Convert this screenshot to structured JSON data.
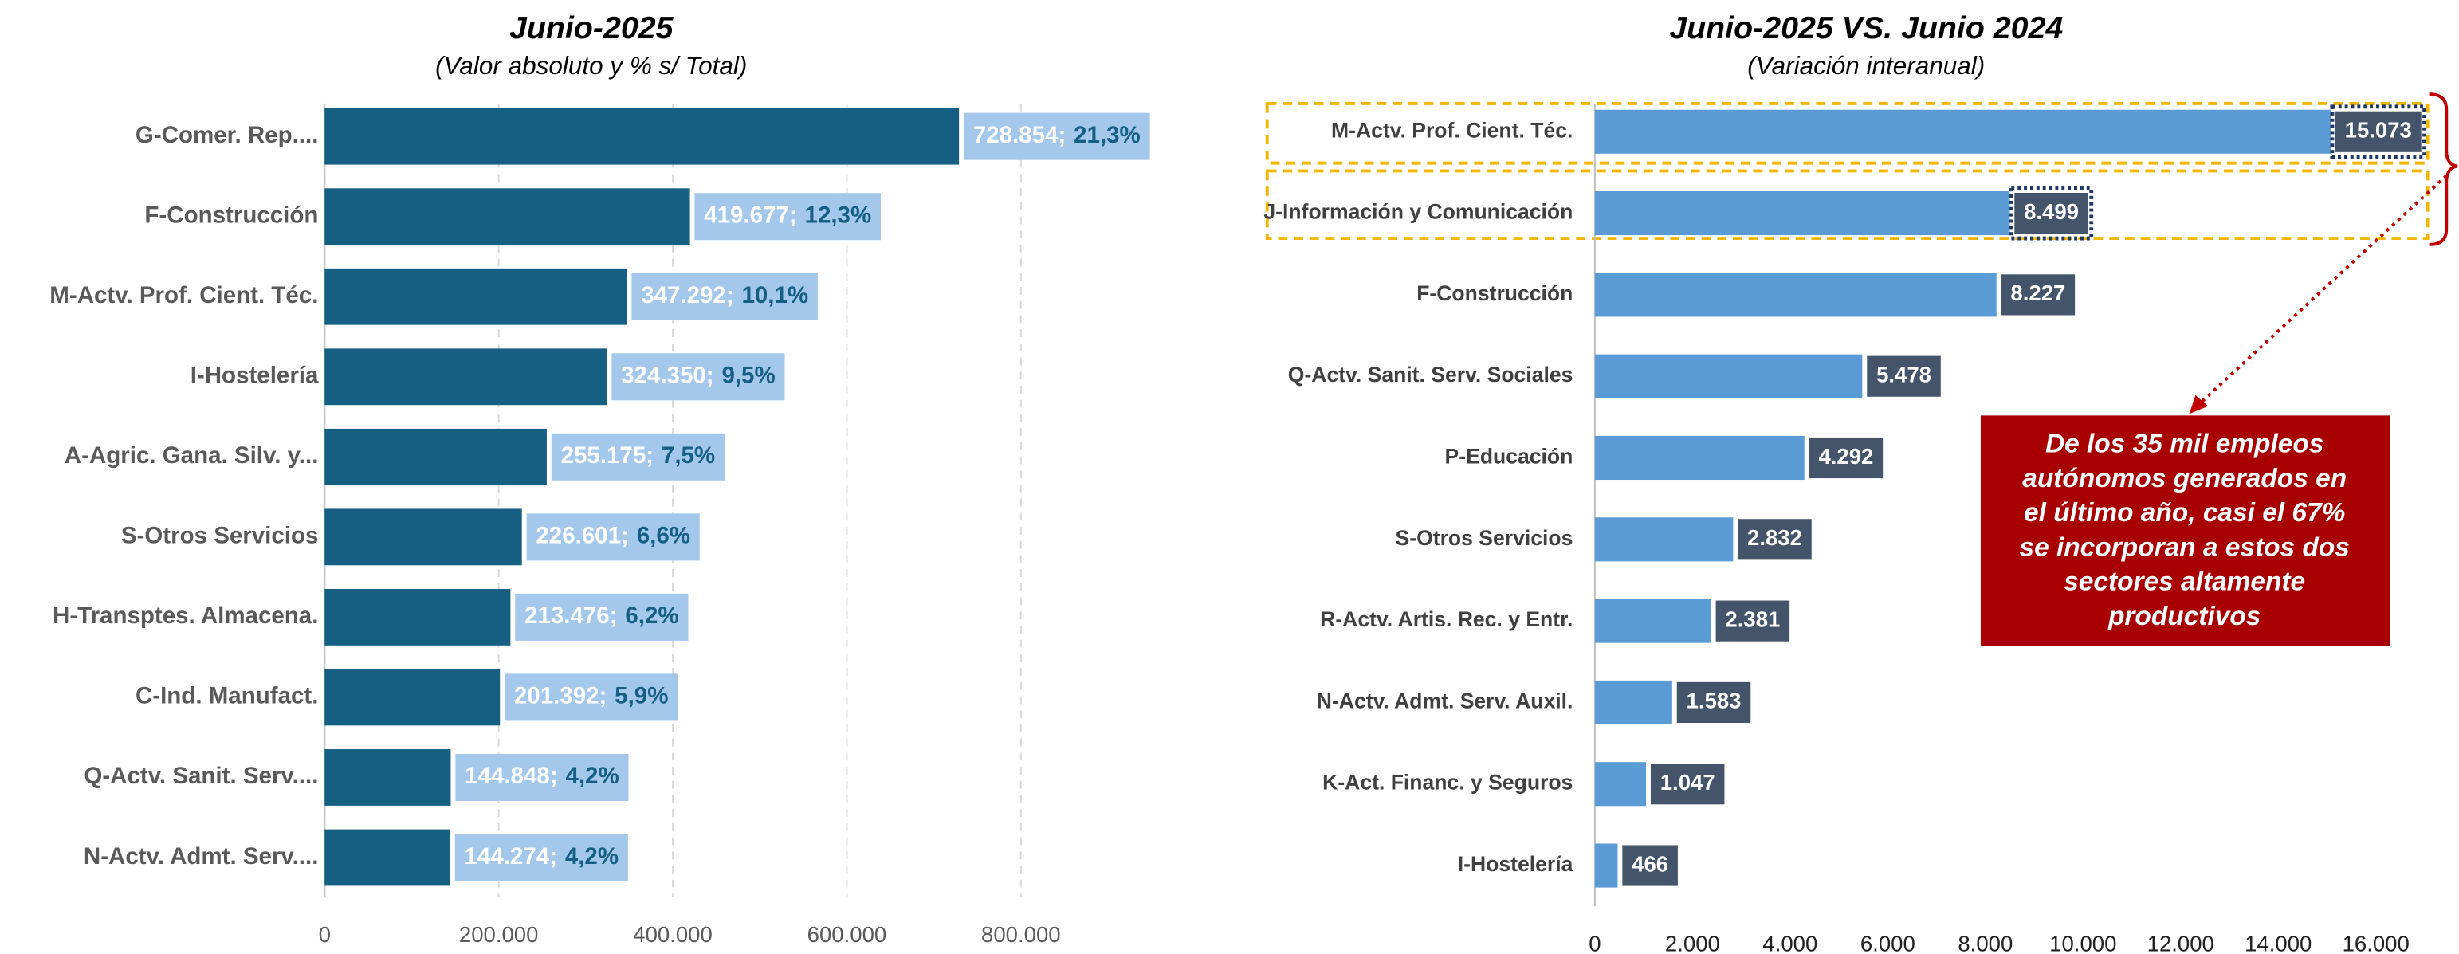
{
  "chart_data": [
    {
      "type": "bar",
      "orientation": "horizontal",
      "title": "Junio-2025",
      "subtitle": "(Valor absoluto y % s/ Total)",
      "categories": [
        "G-Comer. Rep....",
        "F-Construcción",
        "M-Actv. Prof. Cient. Téc.",
        "I-Hostelería",
        "A-Agric. Gana. Silv. y...",
        "S-Otros Servicios",
        "H-Transptes. Almacena.",
        "C-Ind. Manufact.",
        "Q-Actv. Sanit. Serv....",
        "N-Actv. Admt. Serv...."
      ],
      "values": [
        728854,
        419677,
        347292,
        324350,
        255175,
        226601,
        213476,
        201392,
        144848,
        144274
      ],
      "value_labels": [
        "728.854;",
        "419.677;",
        "347.292;",
        "324.350;",
        "255.175;",
        "226.601;",
        "213.476;",
        "201.392;",
        "144.848;",
        "144.274;"
      ],
      "shares": [
        21.3,
        12.3,
        10.1,
        9.5,
        7.5,
        6.6,
        6.2,
        5.9,
        4.2,
        4.2
      ],
      "share_labels": [
        "21,3%",
        "12,3%",
        "10,1%",
        "9,5%",
        "7,5%",
        "6,6%",
        "6,2%",
        "5,9%",
        "4,2%",
        "4,2%"
      ],
      "color": "#145f82",
      "label_color": "#a4c8ec",
      "xlim": [
        0,
        800000
      ],
      "xticks": [
        0,
        {
          "value": 200000,
          "label": "200.000"
        },
        {
          "value": 400000,
          "label": "400.000"
        },
        {
          "value": 600000,
          "label": "600.000"
        },
        {
          "value": 800000,
          "label": "800.000"
        }
      ],
      "grid": true
    },
    {
      "type": "bar",
      "orientation": "horizontal",
      "title": "Junio-2025 VS. Junio 2024",
      "subtitle": "(Variación interanual)",
      "categories": [
        "M-Actv. Prof. Cient. Téc.",
        "J-Información y Comunicación",
        "F-Construcción",
        "Q-Actv. Sanit. Serv. Sociales",
        "P-Educación",
        "S-Otros Servicios",
        "R-Actv. Artis. Rec. y Entr.",
        "N-Actv. Admt. Serv. Auxil.",
        "K-Act. Financ. y Seguros",
        "I-Hostelería"
      ],
      "values": [
        15073,
        8499,
        8227,
        5478,
        4292,
        2832,
        2381,
        1583,
        1047,
        466
      ],
      "value_labels": [
        "15.073",
        "8.499",
        "8.227",
        "5.478",
        "4.292",
        "2.832",
        "2.381",
        "1.583",
        "1.047",
        "466"
      ],
      "color": "#5b9bd5",
      "label_color": "#44546a",
      "xlim": [
        0,
        16000
      ],
      "xticks": [
        0,
        {
          "value": 2000,
          "label": "2.000"
        },
        {
          "value": 4000,
          "label": "4.000"
        },
        {
          "value": 6000,
          "label": "6.000"
        },
        {
          "value": 8000,
          "label": "8.000"
        },
        {
          "value": 10000,
          "label": "10.000"
        },
        {
          "value": 12000,
          "label": "12.000"
        },
        {
          "value": 14000,
          "label": "14.000"
        },
        {
          "value": 16000,
          "label": "16.000"
        }
      ],
      "grid": false,
      "annotation": {
        "lines": [
          "De los 35 mil empleos",
          "autónomos generados en",
          "el último año, casi el 67%",
          "se incorporan a estos dos",
          "sectores altamente",
          "productivos"
        ]
      }
    }
  ]
}
